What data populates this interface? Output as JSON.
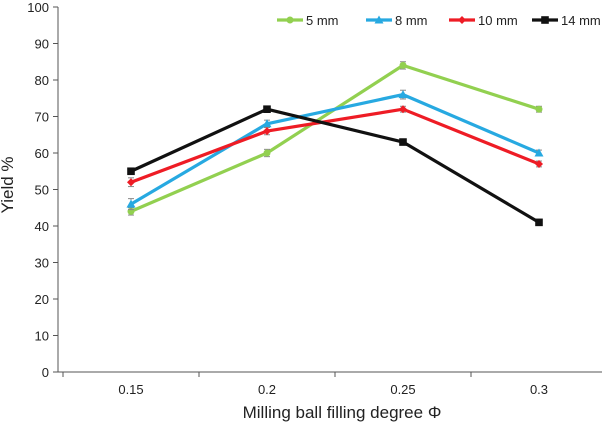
{
  "chart_data": {
    "type": "line",
    "xlabel": "Milling ball filling degree Φ",
    "ylabel": "Yield %",
    "categories": [
      "0.15",
      "0.2",
      "0.25",
      "0.3"
    ],
    "ylim": [
      0,
      100
    ],
    "yticks": [
      0,
      10,
      20,
      30,
      40,
      50,
      60,
      70,
      80,
      90,
      100
    ],
    "grid": false,
    "legend_position": "top-right",
    "series": [
      {
        "name": "5 mm",
        "color": "#92d050",
        "marker": "circle",
        "values": [
          44,
          60,
          84,
          72
        ],
        "errors": [
          1.0,
          1.0,
          1.0,
          0.8
        ]
      },
      {
        "name": "8 mm",
        "color": "#27a9e1",
        "marker": "triangle",
        "values": [
          46,
          68,
          76,
          60
        ],
        "errors": [
          1.5,
          1.0,
          1.2,
          0.8
        ]
      },
      {
        "name": "10 mm",
        "color": "#ee1c25",
        "marker": "diamond",
        "values": [
          52,
          66,
          72,
          57
        ],
        "errors": [
          1.2,
          1.0,
          0.8,
          0.8
        ]
      },
      {
        "name": "14 mm",
        "color": "#111111",
        "marker": "square",
        "values": [
          55,
          72,
          63,
          41
        ],
        "errors": [
          0.5,
          0.8,
          0.5,
          0.5
        ]
      }
    ]
  }
}
